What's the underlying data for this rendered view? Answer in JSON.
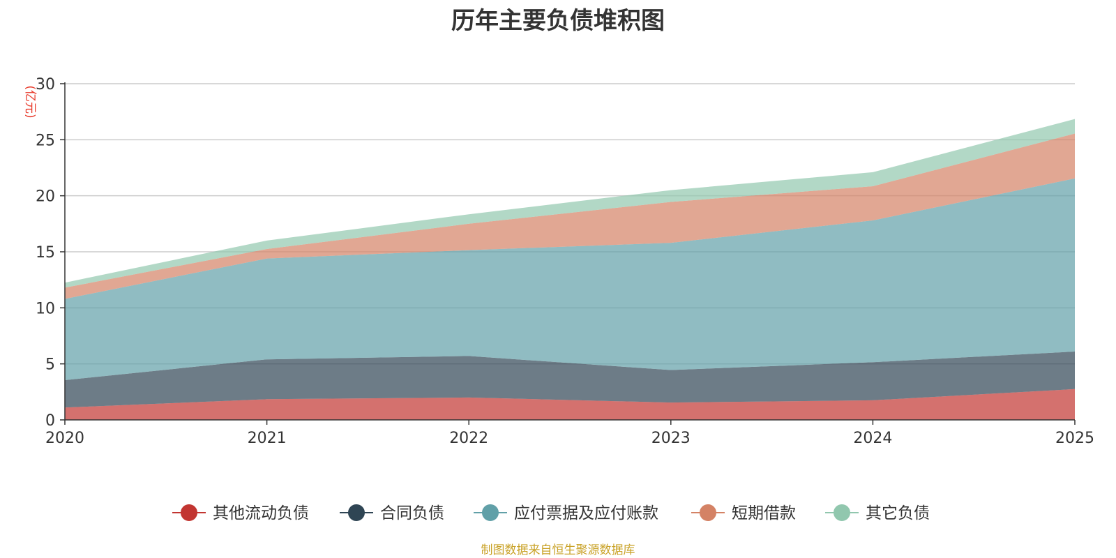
{
  "source_note": "制图数据来自恒生聚源数据库",
  "chart_data": {
    "type": "area",
    "stacked": true,
    "title": "历年主要负债堆积图",
    "y_unit": "(亿元)",
    "y_unit_color": "#e8392a",
    "x": [
      "2020",
      "2021",
      "2022",
      "2023",
      "2024",
      "2025"
    ],
    "ylim": [
      0,
      30
    ],
    "yticks": [
      0,
      5,
      10,
      15,
      20,
      25,
      30
    ],
    "grid": true,
    "legend_position": "bottom",
    "series": [
      {
        "name": "其他流动负债",
        "color": "#c23531",
        "values": [
          1.1,
          1.85,
          2.0,
          1.55,
          1.75,
          2.75
        ]
      },
      {
        "name": "合同负债",
        "color": "#2f4554",
        "values": [
          2.45,
          3.55,
          3.7,
          2.9,
          3.4,
          3.35
        ]
      },
      {
        "name": "应付票据及应付账款",
        "color": "#61a0a8",
        "values": [
          7.25,
          9.0,
          9.45,
          11.35,
          12.65,
          15.45
        ]
      },
      {
        "name": "短期借款",
        "color": "#d48265",
        "values": [
          1.0,
          0.85,
          2.35,
          3.65,
          3.05,
          4.0
        ]
      },
      {
        "name": "其它负债",
        "color": "#91c7ae",
        "values": [
          0.45,
          0.75,
          0.85,
          1.05,
          1.25,
          1.3
        ]
      }
    ]
  }
}
